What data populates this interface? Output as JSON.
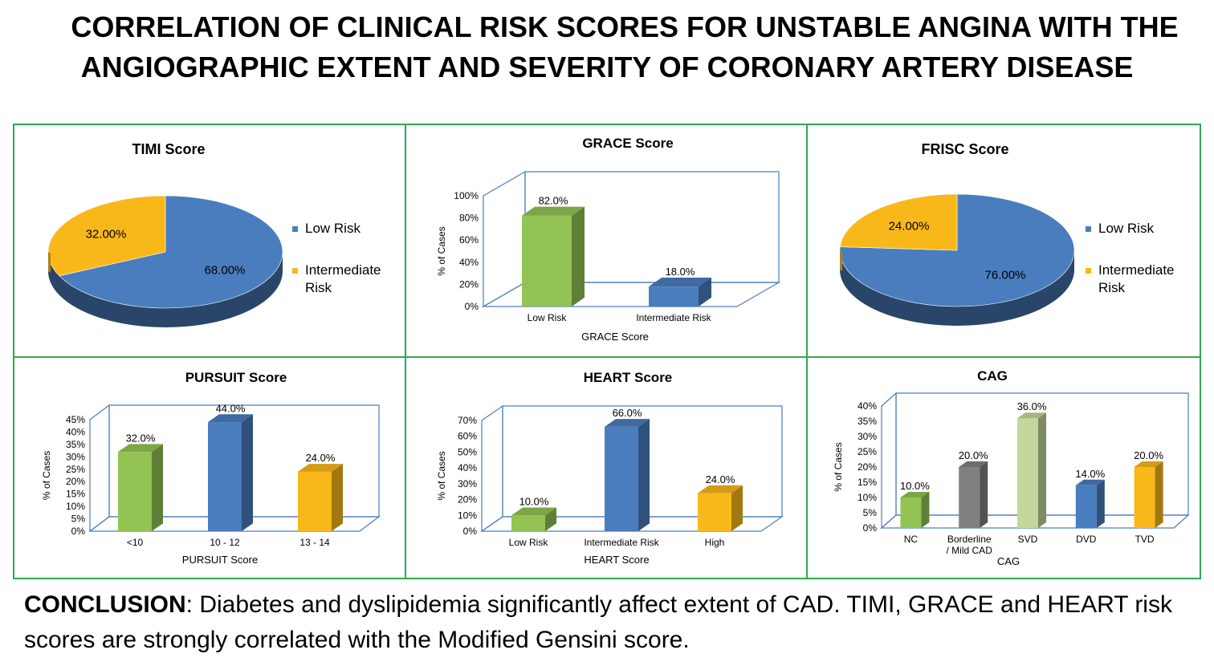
{
  "title_line1": "CORRELATION OF CLINICAL RISK SCORES FOR UNSTABLE ANGINA WITH THE",
  "title_line2": "ANGIOGRAPHIC EXTENT AND SEVERITY OF CORONARY ARTERY DISEASE",
  "conclusion_label": "CONCLUSION",
  "conclusion_text": ": Diabetes and dyslipidemia significantly affect extent of CAD. TIMI, GRACE and HEART risk scores are strongly correlated with the Modified Gensini score.",
  "colors": {
    "green": "#92c353",
    "blue": "#4a7dbe",
    "orange": "#f9b81a",
    "gray": "#808080",
    "lightgreen": "#c3d69b",
    "border": "#2fa84f",
    "axis": "#4a7dbe"
  },
  "chart_data": [
    {
      "id": "timi",
      "type": "pie",
      "title": "TIMI Score",
      "slices": [
        {
          "label": "Low Risk",
          "value": 68.0,
          "text": "68.00%",
          "color": "#4a7dbe"
        },
        {
          "label": "Intermediate Risk",
          "value": 32.0,
          "text": "32.00%",
          "color": "#f9b81a"
        }
      ],
      "legend": [
        "Low Risk",
        "Intermediate",
        "Risk"
      ]
    },
    {
      "id": "grace",
      "type": "bar",
      "title": "GRACE Score",
      "categories": [
        "Low Risk",
        "Intermediate Risk"
      ],
      "values": [
        82.0,
        18.0
      ],
      "value_labels": [
        "82.0%",
        "18.0%"
      ],
      "colors": [
        "#92c353",
        "#4a7dbe"
      ],
      "ylabel": "% of Cases",
      "xlabel": "GRACE Score",
      "ylim": [
        0,
        100
      ],
      "yticks": [
        "0%",
        "20%",
        "40%",
        "60%",
        "80%",
        "100%"
      ]
    },
    {
      "id": "frisc",
      "type": "pie",
      "title": "FRISC Score",
      "slices": [
        {
          "label": "Low Risk",
          "value": 76.0,
          "text": "76.00%",
          "color": "#4a7dbe"
        },
        {
          "label": "Intermediate Risk",
          "value": 24.0,
          "text": "24.00%",
          "color": "#f9b81a"
        }
      ],
      "legend": [
        "Low Risk",
        "Intermediate",
        "Risk"
      ]
    },
    {
      "id": "pursuit",
      "type": "bar",
      "title": "PURSUIT Score",
      "categories": [
        "<10",
        "10 - 12",
        "13 - 14"
      ],
      "values": [
        32.0,
        44.0,
        24.0
      ],
      "value_labels": [
        "32.0%",
        "44.0%",
        "24.0%"
      ],
      "colors": [
        "#92c353",
        "#4a7dbe",
        "#f9b81a"
      ],
      "ylabel": "% of Cases",
      "xlabel": "PURSUIT Score",
      "ylim": [
        0,
        45
      ],
      "yticks": [
        "0%",
        "5%",
        "10%",
        "15%",
        "20%",
        "25%",
        "30%",
        "35%",
        "40%",
        "45%"
      ]
    },
    {
      "id": "heart",
      "type": "bar",
      "title": "HEART Score",
      "categories": [
        "Low Risk",
        "Intermediate Risk",
        "High"
      ],
      "values": [
        10.0,
        66.0,
        24.0
      ],
      "value_labels": [
        "10.0%",
        "66.0%",
        "24.0%"
      ],
      "colors": [
        "#92c353",
        "#4a7dbe",
        "#f9b81a"
      ],
      "ylabel": "% of Cases",
      "xlabel": "HEART Score",
      "ylim": [
        0,
        70
      ],
      "yticks": [
        "0%",
        "10%",
        "20%",
        "30%",
        "40%",
        "50%",
        "60%",
        "70%"
      ]
    },
    {
      "id": "cag",
      "type": "bar",
      "title": "CAG",
      "categories": [
        "NC",
        "Borderline\n/ Mild CAD",
        "SVD",
        "DVD",
        "TVD"
      ],
      "values": [
        10.0,
        20.0,
        36.0,
        14.0,
        20.0
      ],
      "value_labels": [
        "10.0%",
        "20.0%",
        "36.0%",
        "14.0%",
        "20.0%"
      ],
      "colors": [
        "#92c353",
        "#808080",
        "#c3d69b",
        "#4a7dbe",
        "#f9b81a"
      ],
      "ylabel": "% of Cases",
      "xlabel": "CAG",
      "ylim": [
        0,
        40
      ],
      "yticks": [
        "0%",
        "5%",
        "10%",
        "15%",
        "20%",
        "25%",
        "30%",
        "35%",
        "40%"
      ]
    }
  ]
}
